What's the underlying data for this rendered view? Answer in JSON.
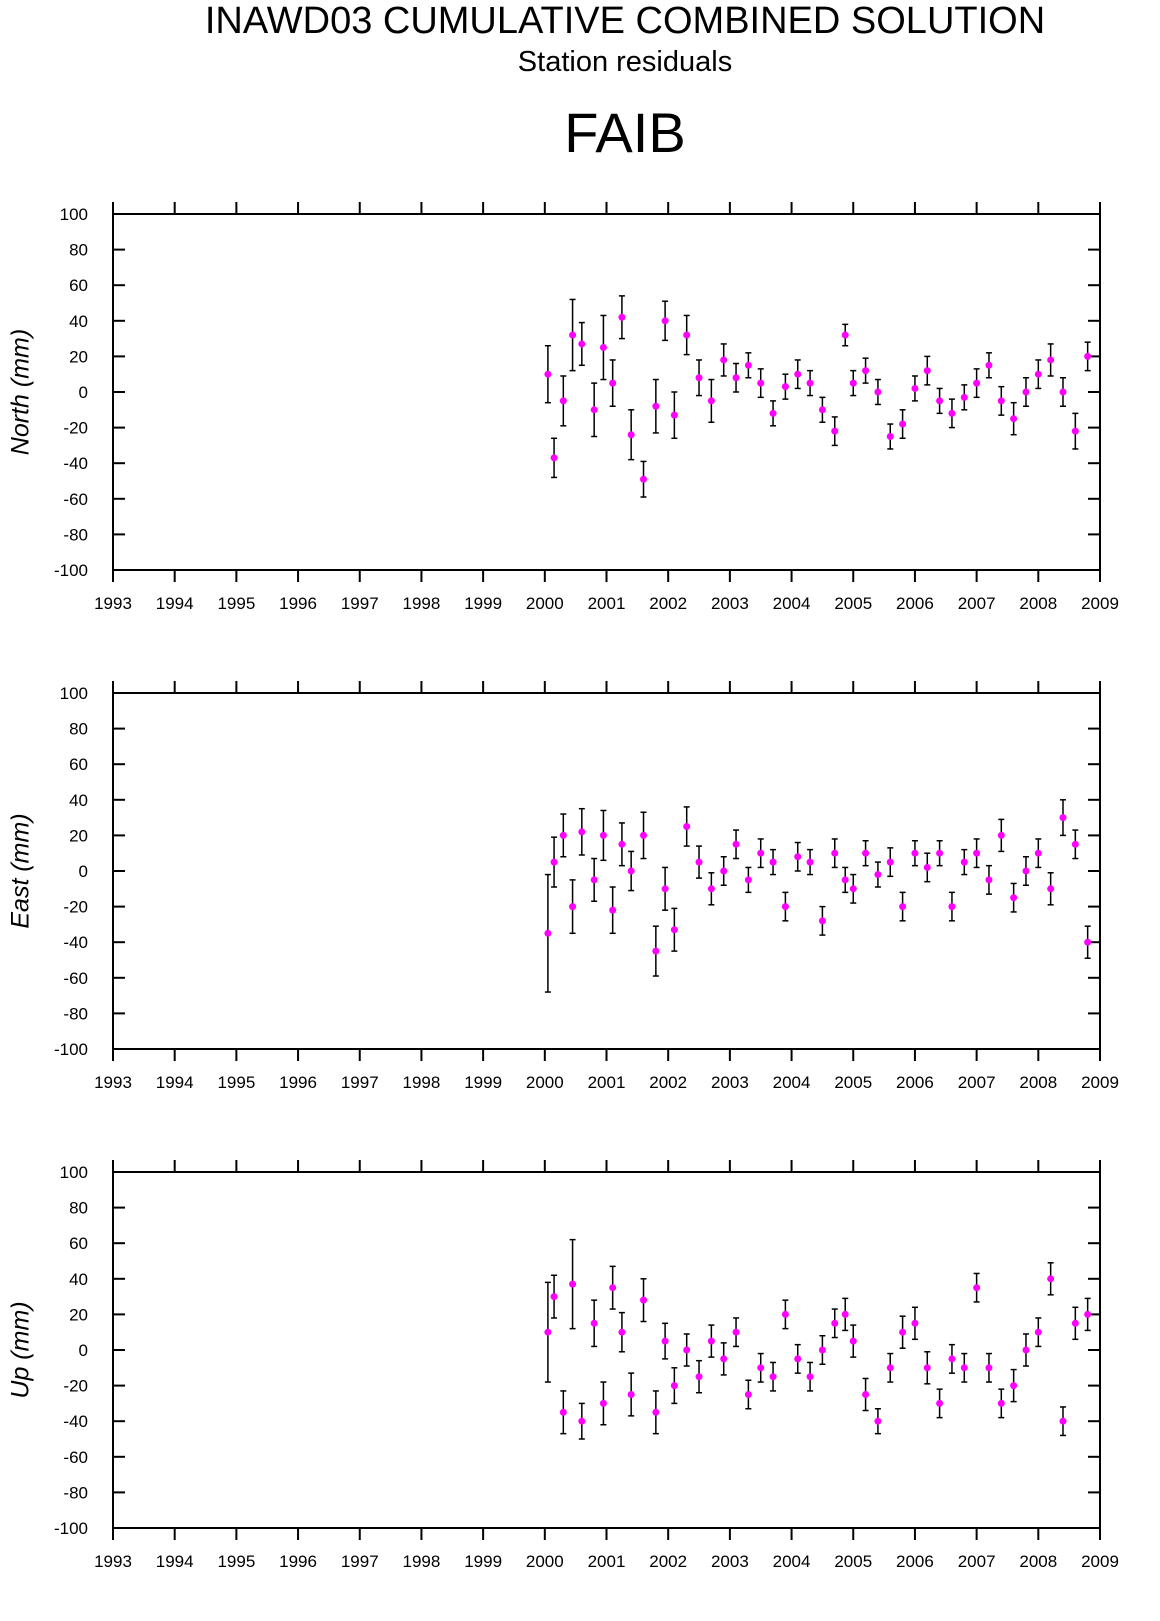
{
  "title": "INAWD03 CUMULATIVE COMBINED SOLUTION",
  "subtitle": "Station residuals",
  "station": "FAIB",
  "chart_data": [
    {
      "type": "scatter",
      "y_label": "North (mm)",
      "color": "#ff00ff",
      "error_color": "#000000",
      "xlim": [
        1993,
        2009
      ],
      "xticks": [
        1993,
        1994,
        1995,
        1996,
        1997,
        1998,
        1999,
        2000,
        2001,
        2002,
        2003,
        2004,
        2005,
        2006,
        2007,
        2008,
        2009
      ],
      "ylim": [
        -100,
        100
      ],
      "yticks": [
        -100,
        -80,
        -60,
        -40,
        -20,
        0,
        20,
        40,
        60,
        80,
        100
      ],
      "x": [
        2000.05,
        2000.15,
        2000.3,
        2000.45,
        2000.6,
        2000.8,
        2000.95,
        2001.1,
        2001.25,
        2001.4,
        2001.6,
        2001.8,
        2001.95,
        2002.1,
        2002.3,
        2002.5,
        2002.7,
        2002.9,
        2003.1,
        2003.3,
        2003.5,
        2003.7,
        2003.9,
        2004.1,
        2004.3,
        2004.5,
        2004.7,
        2004.87,
        2005.0,
        2005.2,
        2005.4,
        2005.6,
        2005.8,
        2006.0,
        2006.2,
        2006.4,
        2006.6,
        2006.8,
        2007.0,
        2007.2,
        2007.4,
        2007.6,
        2007.8,
        2008.0,
        2008.2,
        2008.4,
        2008.6,
        2008.8
      ],
      "values": [
        10,
        -37,
        -5,
        32,
        27,
        -10,
        25,
        5,
        42,
        -24,
        -49,
        -8,
        40,
        -13,
        32,
        8,
        -5,
        18,
        8,
        15,
        5,
        -12,
        3,
        10,
        5,
        -10,
        -22,
        32,
        5,
        12,
        0,
        -25,
        -18,
        2,
        12,
        -5,
        -12,
        -3,
        5,
        15,
        -5,
        -15,
        0,
        10,
        18,
        0,
        -22,
        20
      ],
      "errors": [
        16,
        11,
        14,
        20,
        12,
        15,
        18,
        13,
        12,
        14,
        10,
        15,
        11,
        13,
        11,
        10,
        12,
        9,
        8,
        7,
        8,
        7,
        7,
        8,
        7,
        7,
        8,
        6,
        7,
        7,
        7,
        7,
        8,
        7,
        8,
        7,
        8,
        7,
        8,
        7,
        8,
        9,
        8,
        8,
        9,
        8,
        10,
        8
      ]
    },
    {
      "type": "scatter",
      "y_label": "East (mm)",
      "color": "#ff00ff",
      "error_color": "#000000",
      "xlim": [
        1993,
        2009
      ],
      "xticks": [
        1993,
        1994,
        1995,
        1996,
        1997,
        1998,
        1999,
        2000,
        2001,
        2002,
        2003,
        2004,
        2005,
        2006,
        2007,
        2008,
        2009
      ],
      "ylim": [
        -100,
        100
      ],
      "yticks": [
        -100,
        -80,
        -60,
        -40,
        -20,
        0,
        20,
        40,
        60,
        80,
        100
      ],
      "x": [
        2000.05,
        2000.15,
        2000.3,
        2000.45,
        2000.6,
        2000.8,
        2000.95,
        2001.1,
        2001.25,
        2001.4,
        2001.6,
        2001.8,
        2001.95,
        2002.1,
        2002.3,
        2002.5,
        2002.7,
        2002.9,
        2003.1,
        2003.3,
        2003.5,
        2003.7,
        2003.9,
        2004.1,
        2004.3,
        2004.5,
        2004.7,
        2004.87,
        2005.0,
        2005.2,
        2005.4,
        2005.6,
        2005.8,
        2006.0,
        2006.2,
        2006.4,
        2006.6,
        2006.8,
        2007.0,
        2007.2,
        2007.4,
        2007.6,
        2007.8,
        2008.0,
        2008.2,
        2008.4,
        2008.6,
        2008.8
      ],
      "values": [
        -35,
        5,
        20,
        -20,
        22,
        -5,
        20,
        -22,
        15,
        0,
        20,
        -45,
        -10,
        -33,
        25,
        5,
        -10,
        0,
        15,
        -5,
        10,
        5,
        -20,
        8,
        5,
        -28,
        10,
        -5,
        -10,
        10,
        -2,
        5,
        -20,
        10,
        2,
        10,
        -20,
        5,
        10,
        -5,
        20,
        -15,
        0,
        10,
        -10,
        30,
        15,
        -40
      ],
      "errors": [
        33,
        14,
        12,
        15,
        13,
        12,
        14,
        13,
        12,
        11,
        13,
        14,
        12,
        12,
        11,
        9,
        9,
        8,
        8,
        7,
        8,
        7,
        8,
        8,
        7,
        8,
        8,
        7,
        8,
        7,
        7,
        8,
        8,
        7,
        8,
        7,
        8,
        7,
        8,
        8,
        9,
        8,
        8,
        8,
        9,
        10,
        8,
        9
      ]
    },
    {
      "type": "scatter",
      "y_label": "Up (mm)",
      "color": "#ff00ff",
      "error_color": "#000000",
      "xlim": [
        1993,
        2009
      ],
      "xticks": [
        1993,
        1994,
        1995,
        1996,
        1997,
        1998,
        1999,
        2000,
        2001,
        2002,
        2003,
        2004,
        2005,
        2006,
        2007,
        2008,
        2009
      ],
      "ylim": [
        -100,
        100
      ],
      "yticks": [
        -100,
        -80,
        -60,
        -40,
        -20,
        0,
        20,
        40,
        60,
        80,
        100
      ],
      "x": [
        2000.05,
        2000.15,
        2000.3,
        2000.45,
        2000.6,
        2000.8,
        2000.95,
        2001.1,
        2001.25,
        2001.4,
        2001.6,
        2001.8,
        2001.95,
        2002.1,
        2002.3,
        2002.5,
        2002.7,
        2002.9,
        2003.1,
        2003.3,
        2003.5,
        2003.7,
        2003.9,
        2004.1,
        2004.3,
        2004.5,
        2004.7,
        2004.87,
        2005.0,
        2005.2,
        2005.4,
        2005.6,
        2005.8,
        2006.0,
        2006.2,
        2006.4,
        2006.6,
        2006.8,
        2007.0,
        2007.2,
        2007.4,
        2007.6,
        2007.8,
        2008.0,
        2008.2,
        2008.4,
        2008.6,
        2008.8
      ],
      "values": [
        10,
        30,
        -35,
        37,
        -40,
        15,
        -30,
        35,
        10,
        -25,
        28,
        -35,
        5,
        -20,
        0,
        -15,
        5,
        -5,
        10,
        -25,
        -10,
        -15,
        20,
        -5,
        -15,
        0,
        15,
        20,
        5,
        -25,
        -40,
        -10,
        10,
        15,
        -10,
        -30,
        -5,
        -10,
        35,
        -10,
        -30,
        -20,
        0,
        10,
        40,
        -40,
        15,
        20
      ],
      "errors": [
        28,
        12,
        12,
        25,
        10,
        13,
        12,
        12,
        11,
        12,
        12,
        12,
        10,
        10,
        9,
        9,
        9,
        9,
        8,
        8,
        8,
        8,
        8,
        8,
        8,
        8,
        8,
        9,
        9,
        9,
        7,
        8,
        9,
        9,
        9,
        8,
        8,
        8,
        8,
        8,
        8,
        9,
        9,
        8,
        9,
        8,
        9,
        9
      ]
    }
  ]
}
